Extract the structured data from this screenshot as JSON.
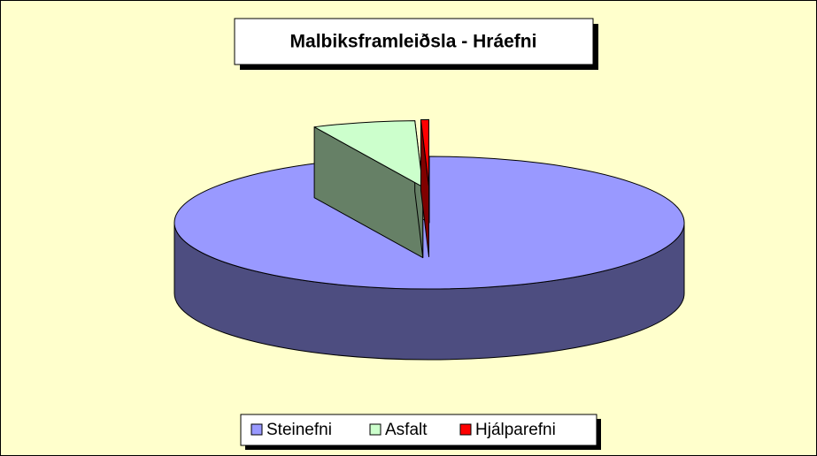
{
  "chart_data": {
    "type": "pie",
    "title": "Malbiksframleiðsla - Hráefni",
    "categories": [
      "Steinefni",
      "Asfalt",
      "Hjálparefni"
    ],
    "values": [
      93,
      6.5,
      0.5
    ],
    "colors": [
      "#9999ff",
      "#ccffcc",
      "#ff0000"
    ],
    "exploded": [
      false,
      true,
      true
    ],
    "legend": "bottom"
  }
}
